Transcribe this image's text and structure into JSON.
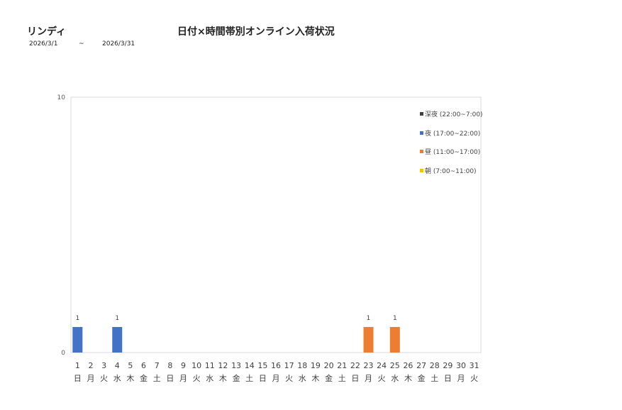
{
  "header": {
    "store_name": "リンディ",
    "title": "日付×時間帯別オンライン入荷状況",
    "date_from": "2026/3/1",
    "date_sep": "~",
    "date_to": "2026/3/31"
  },
  "chart_data": {
    "type": "bar",
    "stacked": true,
    "ylim": [
      0,
      10
    ],
    "y_ticks": [
      "0",
      "10"
    ],
    "grid": false,
    "legend_position": "top-right",
    "categories": [
      "1",
      "2",
      "3",
      "4",
      "5",
      "6",
      "7",
      "8",
      "9",
      "10",
      "11",
      "12",
      "13",
      "14",
      "15",
      "16",
      "17",
      "18",
      "19",
      "20",
      "21",
      "22",
      "23",
      "24",
      "25",
      "26",
      "27",
      "28",
      "29",
      "30",
      "31"
    ],
    "weekdays": [
      "日",
      "月",
      "火",
      "水",
      "木",
      "金",
      "土",
      "日",
      "月",
      "火",
      "水",
      "木",
      "金",
      "土",
      "日",
      "月",
      "火",
      "水",
      "木",
      "金",
      "土",
      "日",
      "月",
      "火",
      "水",
      "木",
      "金",
      "土",
      "日",
      "月",
      "火"
    ],
    "series": [
      {
        "name": "深夜 (22:00~7:00)",
        "color": "#404040",
        "values": [
          0,
          0,
          0,
          0,
          0,
          0,
          0,
          0,
          0,
          0,
          0,
          0,
          0,
          0,
          0,
          0,
          0,
          0,
          0,
          0,
          0,
          0,
          0,
          0,
          0,
          0,
          0,
          0,
          0,
          0,
          0
        ]
      },
      {
        "name": "夜 (17:00~22:00)",
        "color": "#4472c4",
        "values": [
          1,
          0,
          0,
          1,
          0,
          0,
          0,
          0,
          0,
          0,
          0,
          0,
          0,
          0,
          0,
          0,
          0,
          0,
          0,
          0,
          0,
          0,
          0,
          0,
          0,
          0,
          0,
          0,
          0,
          0,
          0
        ]
      },
      {
        "name": "昼 (11:00~17:00)",
        "color": "#ed7d31",
        "values": [
          0,
          0,
          0,
          0,
          0,
          0,
          0,
          0,
          0,
          0,
          0,
          0,
          0,
          0,
          0,
          0,
          0,
          0,
          0,
          0,
          0,
          0,
          1,
          0,
          1,
          0,
          0,
          0,
          0,
          0,
          0
        ]
      },
      {
        "name": "朝 (7:00~11:00)",
        "color": "#ffc000",
        "values": [
          0,
          0,
          0,
          0,
          0,
          0,
          0,
          0,
          0,
          0,
          0,
          0,
          0,
          0,
          0,
          0,
          0,
          0,
          0,
          0,
          0,
          0,
          0,
          0,
          0,
          0,
          0,
          0,
          0,
          0,
          0
        ]
      }
    ],
    "data_labels": [
      "1",
      "",
      "",
      "1",
      "",
      "",
      "",
      "",
      "",
      "",
      "",
      "",
      "",
      "",
      "",
      "",
      "",
      "",
      "",
      "",
      "",
      "",
      "1",
      "",
      "1",
      "",
      "",
      "",
      "",
      "",
      ""
    ]
  }
}
